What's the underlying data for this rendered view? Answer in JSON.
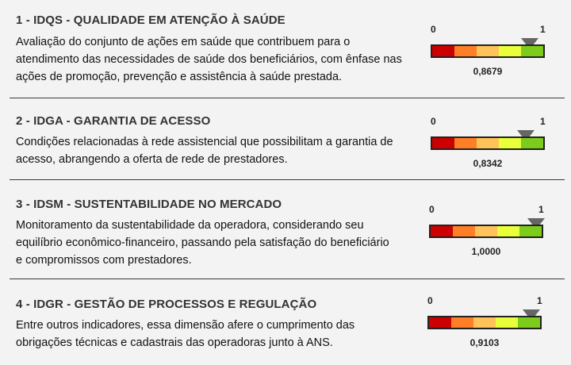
{
  "colors": {
    "seg_red": "#cc0000",
    "seg_orange": "#ff7f27",
    "seg_light_orange": "#ffc35a",
    "seg_yellow": "#e8ff3a",
    "seg_green": "#7ccc1c",
    "marker": "#666666"
  },
  "sections": [
    {
      "title": "1 - IDQS - QUALIDADE EM ATENÇÃO À SAÚDE",
      "description": "Avaliação do conjunto de ações em saúde que contribuem para o atendimento das necessidades de saúde dos beneficiários, com ênfase nas ações de promoção, prevenção e assistência à saúde prestada.",
      "gauge_min": "0",
      "gauge_max": "1",
      "value_label": "0,8679",
      "value": 0.8679
    },
    {
      "title": "2 - IDGA - GARANTIA DE ACESSO",
      "description": "Condições relacionadas à rede assistencial que possibilitam a garantia de acesso, abrangendo a oferta de rede de prestadores.",
      "gauge_min": "0",
      "gauge_max": "1",
      "value_label": "0,8342",
      "value": 0.8342
    },
    {
      "title": "3 - IDSM - SUSTENTABILIDADE NO MERCADO",
      "description": "Monitoramento da sustentabilidade da operadora, considerando seu equilíbrio econômico-financeiro, passando pela satisfação do beneficiário e compromissos com prestadores.",
      "gauge_min": "0",
      "gauge_max": "1",
      "value_label": "1,0000",
      "value": 1.0
    },
    {
      "title": "4 - IDGR - GESTÃO DE PROCESSOS E REGULAÇÃO",
      "description": "Entre outros indicadores, essa dimensão afere o cumprimento das obrigações técnicas e cadastrais das operadoras junto à ANS.",
      "gauge_min": "0",
      "gauge_max": "1",
      "value_label": "0,9103",
      "value": 0.9103
    }
  ]
}
